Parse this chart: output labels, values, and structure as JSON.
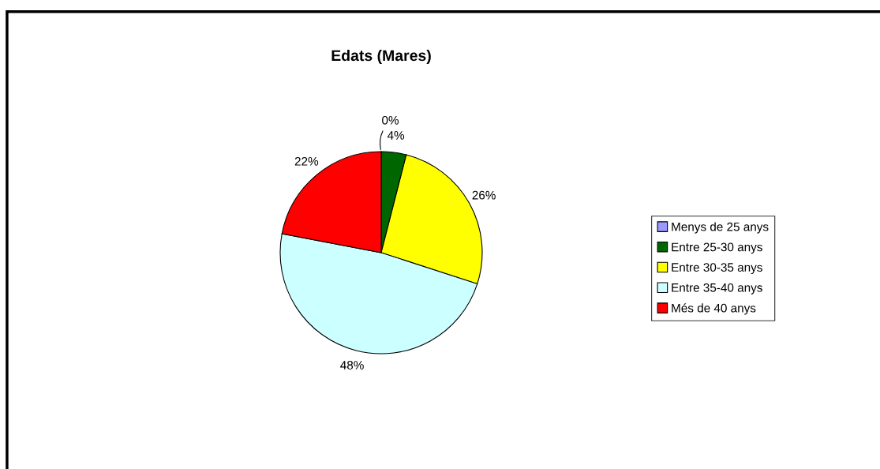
{
  "chart_data": {
    "type": "pie",
    "title": "Edats (Mares)",
    "categories": [
      "Menys de 25 anys",
      "Entre 25-30 anys",
      "Entre 30-35 anys",
      "Entre 35-40 anys",
      "Més de 40 anys"
    ],
    "values": [
      0,
      4,
      26,
      48,
      22
    ],
    "colors": [
      "#9999ff",
      "#006600",
      "#ffff00",
      "#ccffff",
      "#ff0000"
    ],
    "value_labels": [
      "0%",
      "4%",
      "26%",
      "48%",
      "22%"
    ],
    "legend": "right"
  }
}
